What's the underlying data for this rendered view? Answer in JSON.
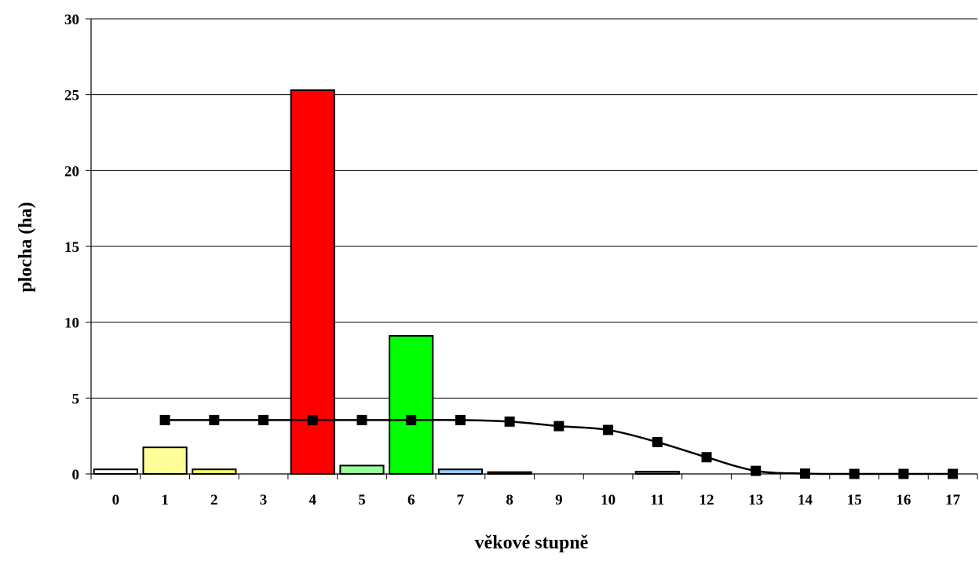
{
  "chart_data": {
    "type": "bar",
    "title": "",
    "xlabel": "věkové stupně",
    "ylabel": "plocha (ha)",
    "ylim": [
      0,
      30
    ],
    "yticks": [
      "0",
      "5",
      "10",
      "15",
      "20",
      "25",
      "30"
    ],
    "categories": [
      "0",
      "1",
      "2",
      "3",
      "4",
      "5",
      "6",
      "7",
      "8",
      "9",
      "10",
      "11",
      "12",
      "13",
      "14",
      "15",
      "16",
      "17"
    ],
    "grid": true,
    "legend": "none",
    "bars": {
      "values": [
        0.3,
        1.75,
        0.3,
        0,
        25.3,
        0.55,
        9.1,
        0.3,
        0.12,
        0,
        0,
        0.15,
        0,
        0,
        0,
        0,
        0,
        0
      ],
      "colors": [
        "#ffffff",
        "#ffff99",
        "#ffff66",
        "#ffffff",
        "#ff0000",
        "#99ff99",
        "#00ff00",
        "#99ccff",
        "#333333",
        "#ffffff",
        "#ffffff",
        "#666666",
        "#ffffff",
        "#ffffff",
        "#ffffff",
        "#ffffff",
        "#ffffff",
        "#ffffff"
      ]
    },
    "line": {
      "x": [
        "1",
        "2",
        "3",
        "4",
        "5",
        "6",
        "7",
        "8",
        "9",
        "10",
        "11",
        "12",
        "13",
        "14",
        "15",
        "16",
        "17"
      ],
      "values": [
        3.55,
        3.55,
        3.55,
        3.55,
        3.55,
        3.55,
        3.55,
        3.45,
        3.15,
        2.9,
        2.1,
        1.1,
        0.2,
        0.02,
        0,
        0,
        0
      ],
      "color": "#000000",
      "marker": "square"
    }
  }
}
